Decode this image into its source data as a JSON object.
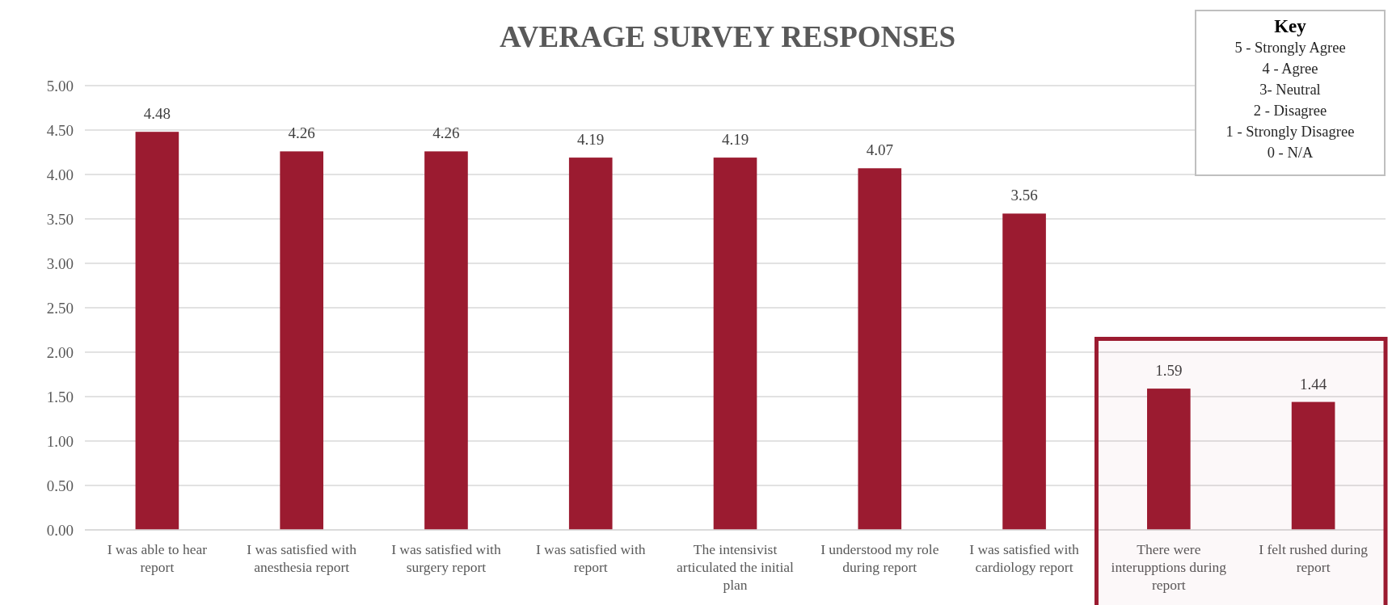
{
  "chart_data": {
    "type": "bar",
    "title": "AVERAGE SURVEY RESPONSES",
    "categories": [
      "I was able to hear report",
      "I was satisfied with anesthesia report",
      "I was satisfied with surgery report",
      "I was satisfied with report",
      "The intensivist articulated the initial plan",
      "I understood my role during report",
      "I was satisfied with cardiology report",
      "There were interupptions during report",
      "I felt rushed during report"
    ],
    "values": [
      4.48,
      4.26,
      4.26,
      4.19,
      4.19,
      4.07,
      3.56,
      1.59,
      1.44
    ],
    "color": "#9b1b30",
    "ylim": [
      0,
      5
    ],
    "yticks": [
      {
        "value": 0,
        "label": "0.00"
      },
      {
        "value": 0.5,
        "label": "0.50"
      },
      {
        "value": 1,
        "label": "1.00"
      },
      {
        "value": 1.5,
        "label": "1.50"
      },
      {
        "value": 2,
        "label": "2.00"
      },
      {
        "value": 2.5,
        "label": "2.50"
      },
      {
        "value": 3,
        "label": "3.00"
      },
      {
        "value": 3.5,
        "label": "3.50"
      },
      {
        "value": 4,
        "label": "4.00"
      },
      {
        "value": 4.5,
        "label": "4.50"
      },
      {
        "value": 5,
        "label": "5.00"
      }
    ],
    "grid": "y",
    "data_labels": true,
    "bands": [
      {
        "axis": "x",
        "from": "There were interupptions during report",
        "to": "I felt rushed during report",
        "color": "#9b1b30"
      }
    ],
    "annotations": [
      "Key",
      "5 - Strongly Agree",
      "4 - Agree",
      "3- Neutral",
      "2 - Disagree",
      "1 - Strongly Disagree",
      "0 - N/A"
    ]
  }
}
